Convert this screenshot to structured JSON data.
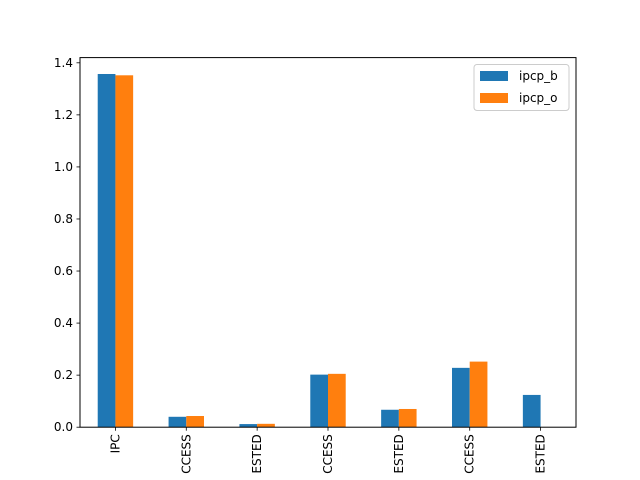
{
  "chart_data": {
    "type": "bar",
    "categories": [
      "IPC",
      "CCESS",
      "ESTED",
      "CCESS",
      "ESTED",
      "CCESS",
      "ESTED"
    ],
    "series": [
      {
        "name": "ipcp_b",
        "color": "#1f77b4",
        "values": [
          1.357,
          0.04,
          0.012,
          0.202,
          0.067,
          0.228,
          0.124
        ]
      },
      {
        "name": "ipcp_o",
        "color": "#ff7f0e",
        "values": [
          1.352,
          0.043,
          0.013,
          0.205,
          0.07,
          0.252,
          0.0
        ]
      }
    ],
    "ylim": [
      0,
      1.42
    ],
    "yticks": [
      0.0,
      0.2,
      0.4,
      0.6,
      0.8,
      1.0,
      1.2,
      1.4
    ],
    "ytick_labels": [
      "0.0",
      "0.2",
      "0.4",
      "0.6",
      "0.8",
      "1.0",
      "1.2",
      "1.4"
    ],
    "grid": false,
    "legend_position": "top-right",
    "title": "",
    "xlabel": "",
    "ylabel": ""
  }
}
